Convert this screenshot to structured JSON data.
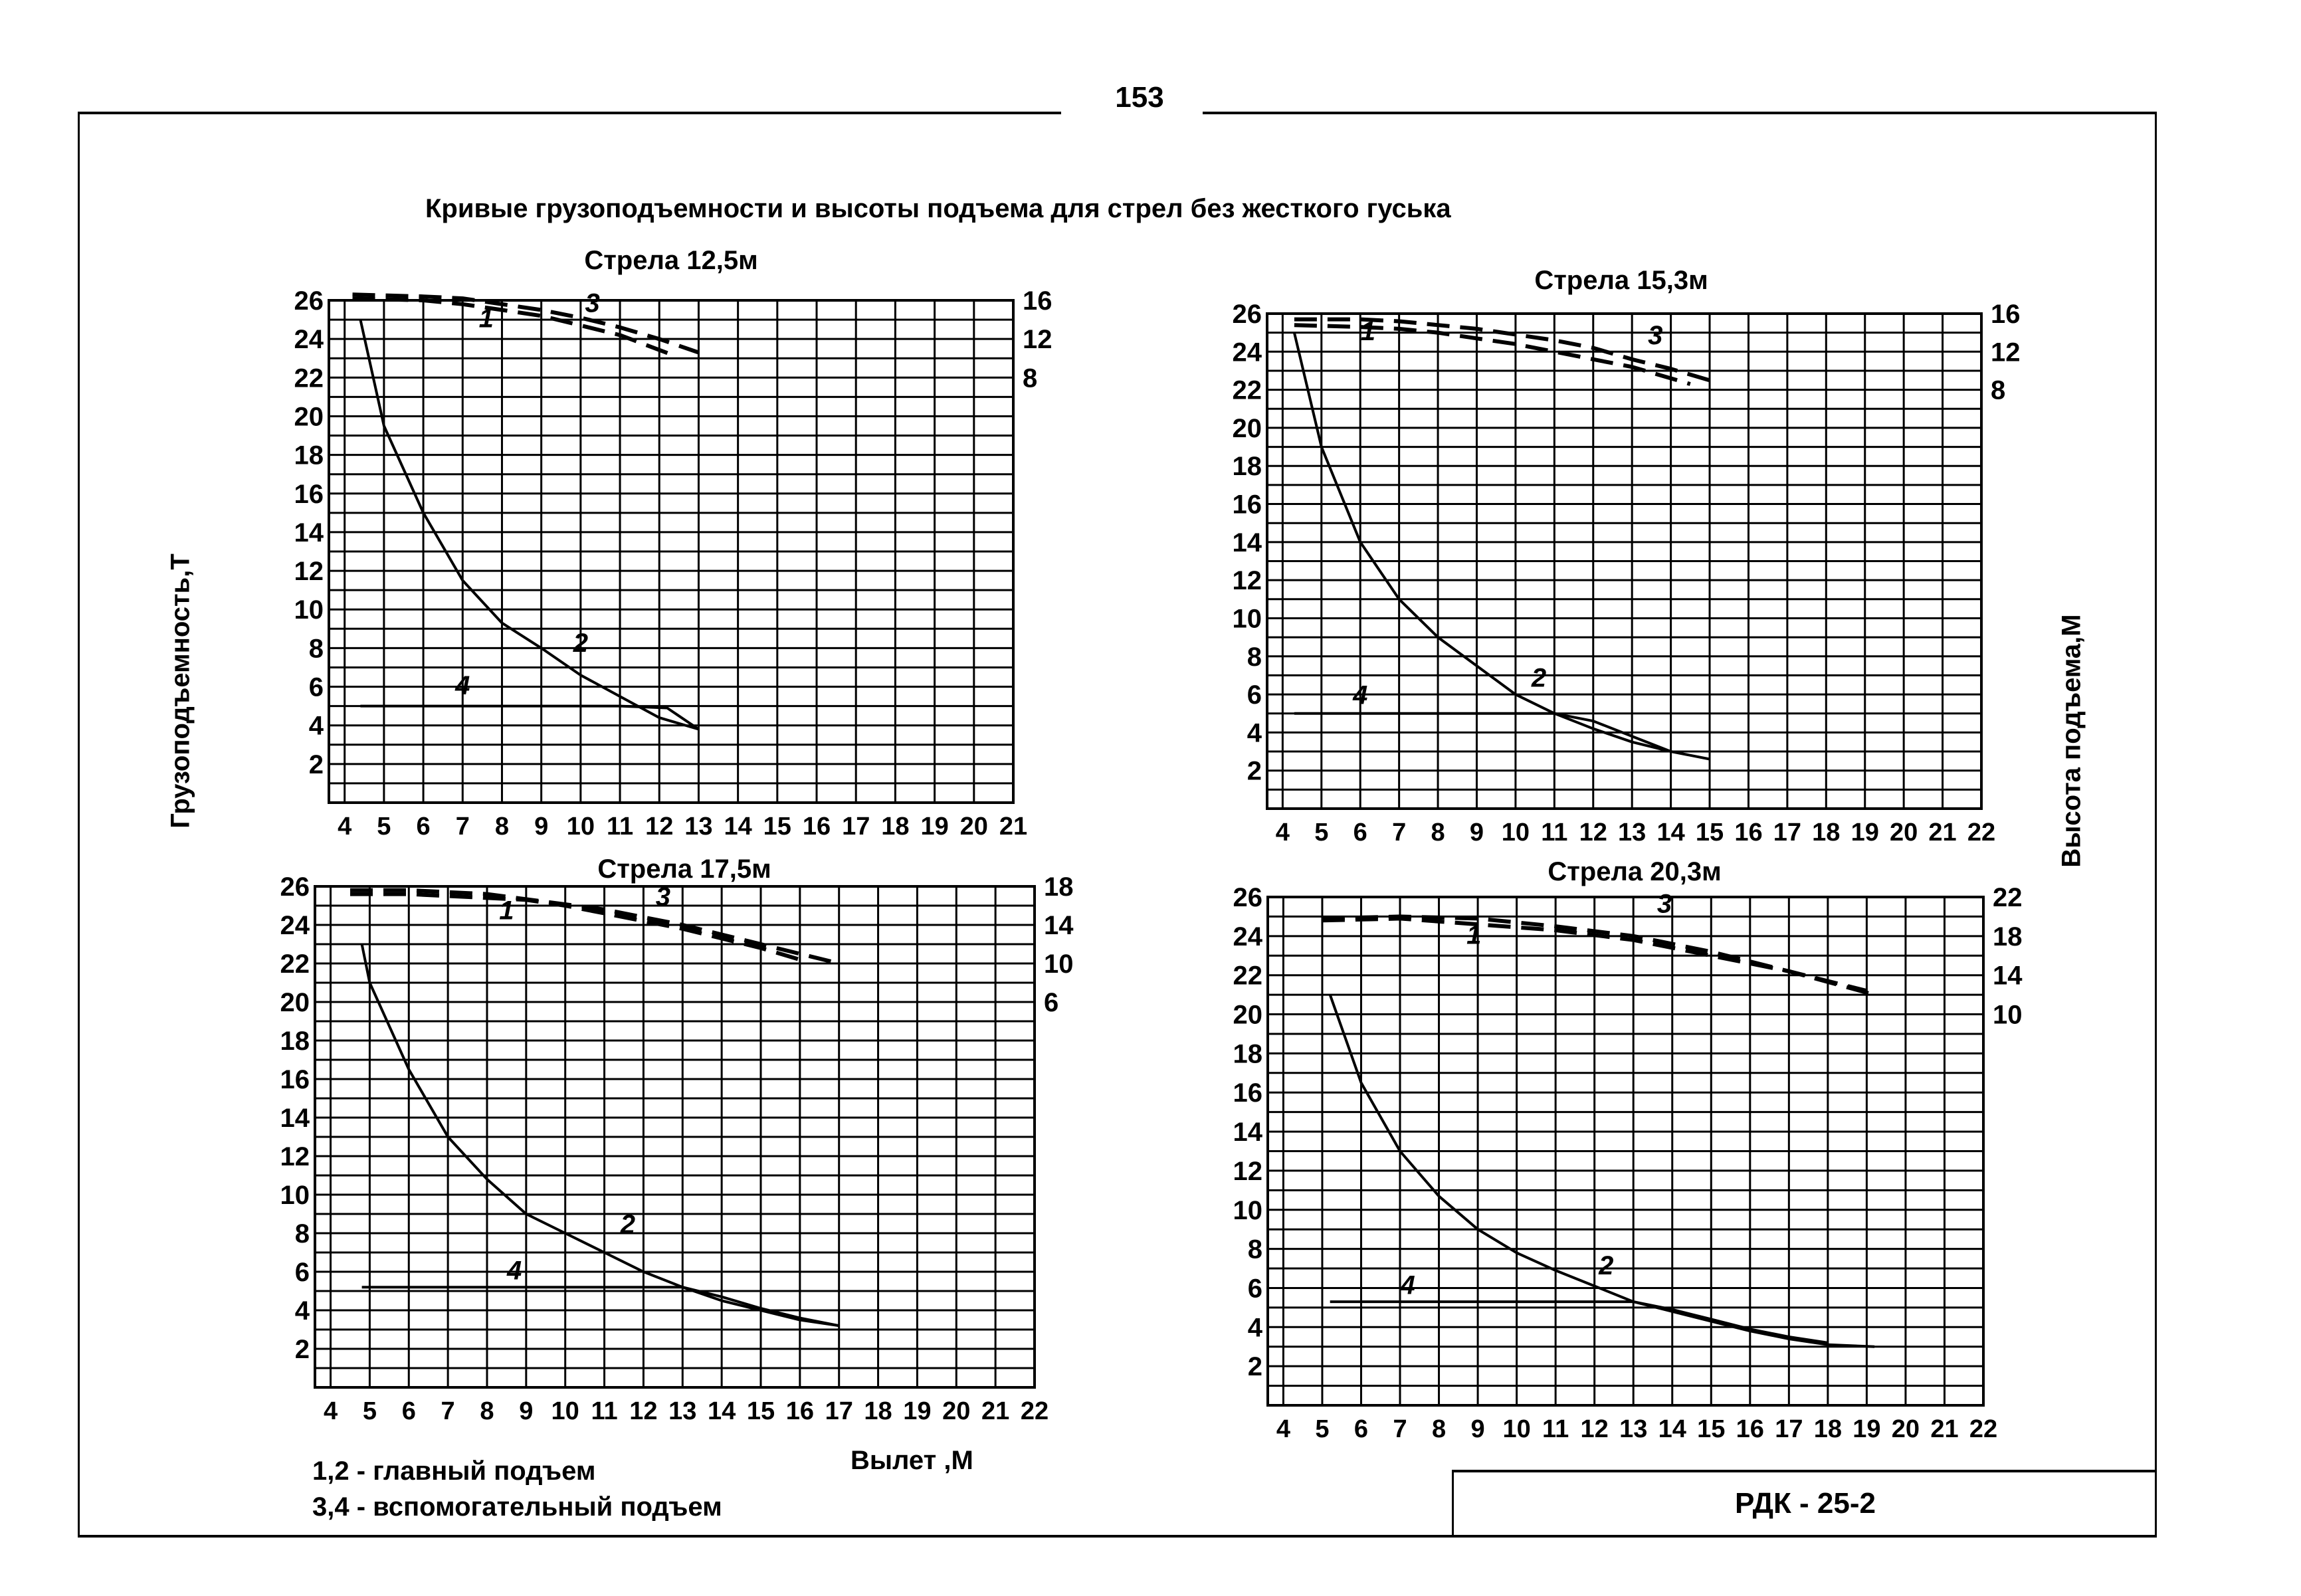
{
  "page": {
    "page_number": "153",
    "main_title": "Кривые грузоподъемности и высоты подъема для стрел без жесткого гуська",
    "y_axis_left_label": "Грузоподъемность,Т",
    "y_axis_right_label": "Высота подъема,М",
    "x_axis_label": "Вылет ,М",
    "legend": [
      "1,2 - главный подъем",
      "3,4 - вспомогательный подъем"
    ],
    "stamp": "РДК - 25-2"
  },
  "chart_data": [
    {
      "type": "line",
      "title": "Стрела 12,5м",
      "xlabel": "Вылет ,М",
      "ylabel": "Грузоподъемность,Т",
      "y2label": "Высота подъема,М",
      "xlim": [
        3.6,
        21
      ],
      "ylim": [
        0,
        26
      ],
      "grid": true,
      "x_ticks": [
        4,
        5,
        6,
        7,
        8,
        9,
        10,
        11,
        12,
        13,
        14,
        15,
        16,
        17,
        18,
        19,
        20,
        21
      ],
      "x_tick_labels": [
        "4",
        "5",
        "6",
        "7",
        "8",
        "9",
        "10",
        "11",
        "12",
        "13",
        "14",
        "15",
        "16",
        "17",
        "18",
        "19",
        "20",
        "21"
      ],
      "y_ticks": [
        2,
        4,
        6,
        8,
        10,
        12,
        14,
        16,
        18,
        20,
        22,
        24,
        26
      ],
      "y2_ticks": [
        {
          "label": "16",
          "at_left": 26
        },
        {
          "label": "12",
          "at_left": 24
        },
        {
          "label": "8",
          "at_left": 22
        }
      ],
      "series": [
        {
          "name": "1",
          "style": "dashed",
          "axis": "right",
          "points": [
            [
              4.2,
              26.1
            ],
            [
              6,
              26.0
            ],
            [
              7,
              25.8
            ],
            [
              8,
              25.5
            ],
            [
              9,
              25.2
            ],
            [
              10,
              24.7
            ],
            [
              11,
              24.2
            ],
            [
              12.3,
              23.2
            ]
          ]
        },
        {
          "name": "2",
          "style": "solid",
          "axis": "left",
          "points": [
            [
              4.4,
              25
            ],
            [
              5,
              19.5
            ],
            [
              6,
              15
            ],
            [
              7,
              11.5
            ],
            [
              8,
              9.3
            ],
            [
              9,
              8
            ],
            [
              10,
              6.6
            ],
            [
              11,
              5.5
            ],
            [
              12,
              4.4
            ],
            [
              13,
              3.8
            ]
          ]
        },
        {
          "name": "3",
          "style": "dashed",
          "axis": "right",
          "points": [
            [
              4.2,
              26.3
            ],
            [
              6,
              26.2
            ],
            [
              7,
              26.1
            ],
            [
              8,
              25.8
            ],
            [
              9,
              25.5
            ],
            [
              10,
              25.1
            ],
            [
              11,
              24.6
            ],
            [
              12,
              24.0
            ],
            [
              13,
              23.3
            ]
          ]
        },
        {
          "name": "4",
          "style": "solid",
          "axis": "left",
          "points": [
            [
              4.4,
              5
            ],
            [
              11,
              5
            ],
            [
              12.2,
              4.9
            ],
            [
              13,
              3.8
            ]
          ]
        }
      ],
      "annotations": [
        {
          "text": "1",
          "x": 7.6,
          "y": 24.6
        },
        {
          "text": "2",
          "x": 10,
          "y": 7.8
        },
        {
          "text": "3",
          "x": 10.3,
          "y": 25.4
        },
        {
          "text": "4",
          "x": 7.0,
          "y": 5.6
        }
      ]
    },
    {
      "type": "line",
      "title": "Стрела 15,3м",
      "xlabel": "Вылет ,М",
      "ylabel": "Грузоподъемность,Т",
      "y2label": "Высота подъема,М",
      "xlim": [
        3.6,
        22
      ],
      "ylim": [
        0,
        26
      ],
      "grid": true,
      "x_ticks": [
        4,
        5,
        6,
        7,
        8,
        9,
        10,
        11,
        12,
        13,
        14,
        15,
        16,
        17,
        18,
        19,
        20,
        21,
        22
      ],
      "x_tick_labels": [
        "4",
        "5",
        "6",
        "7",
        "8",
        "9",
        "10",
        "11",
        "12",
        "13",
        "14",
        "15",
        "16",
        "17",
        "18",
        "19",
        "20",
        "21",
        "22"
      ],
      "y_ticks": [
        2,
        4,
        6,
        8,
        10,
        12,
        14,
        16,
        18,
        20,
        22,
        24,
        26
      ],
      "y2_ticks": [
        {
          "label": "16",
          "at_left": 26
        },
        {
          "label": "12",
          "at_left": 24
        },
        {
          "label": "8",
          "at_left": 22
        }
      ],
      "series": [
        {
          "name": "1",
          "style": "dashed",
          "axis": "right",
          "points": [
            [
              4.3,
              25.4
            ],
            [
              6,
              25.3
            ],
            [
              7,
              25.2
            ],
            [
              8,
              25.0
            ],
            [
              9,
              24.7
            ],
            [
              10,
              24.4
            ],
            [
              11,
              24.0
            ],
            [
              12,
              23.6
            ],
            [
              13,
              23.2
            ],
            [
              14.5,
              22.3
            ]
          ]
        },
        {
          "name": "2",
          "style": "solid",
          "axis": "left",
          "points": [
            [
              4.3,
              25
            ],
            [
              5,
              19
            ],
            [
              6,
              14
            ],
            [
              7,
              11
            ],
            [
              8,
              9
            ],
            [
              9,
              7.5
            ],
            [
              10,
              6
            ],
            [
              11,
              5
            ],
            [
              12,
              4.2
            ],
            [
              13,
              3.5
            ],
            [
              14,
              3
            ],
            [
              15,
              2.6
            ]
          ]
        },
        {
          "name": "3",
          "style": "dashed",
          "axis": "right",
          "points": [
            [
              4.3,
              25.7
            ],
            [
              6,
              25.7
            ],
            [
              7,
              25.6
            ],
            [
              8,
              25.4
            ],
            [
              9,
              25.2
            ],
            [
              10,
              24.9
            ],
            [
              11,
              24.6
            ],
            [
              12,
              24.2
            ],
            [
              13,
              23.6
            ],
            [
              14,
              23.1
            ],
            [
              15,
              22.5
            ]
          ]
        },
        {
          "name": "4",
          "style": "solid",
          "axis": "left",
          "points": [
            [
              4.3,
              5
            ],
            [
              11,
              5
            ],
            [
              12,
              4.6
            ],
            [
              13,
              3.8
            ],
            [
              14,
              3.0
            ]
          ]
        }
      ],
      "annotations": [
        {
          "text": "1",
          "x": 6.2,
          "y": 24.6
        },
        {
          "text": "2",
          "x": 10.6,
          "y": 6.4
        },
        {
          "text": "3",
          "x": 13.6,
          "y": 24.4
        },
        {
          "text": "4",
          "x": 6.0,
          "y": 5.5
        }
      ]
    },
    {
      "type": "line",
      "title": "Стрела 17,5м",
      "xlabel": "Вылет ,М",
      "ylabel": "Грузоподъемность,Т",
      "y2label": "Высота подъема,М",
      "xlim": [
        3.6,
        22
      ],
      "ylim": [
        0,
        26
      ],
      "grid": true,
      "x_ticks": [
        4,
        5,
        6,
        7,
        8,
        9,
        10,
        11,
        12,
        13,
        14,
        15,
        16,
        17,
        18,
        19,
        20,
        21,
        22
      ],
      "x_tick_labels": [
        "4",
        "5",
        "6",
        "7",
        "8",
        "9",
        "10",
        "11",
        "12",
        "13",
        "14",
        "15",
        "16",
        "17",
        "18",
        "19",
        "20",
        "21",
        "22"
      ],
      "y_ticks": [
        2,
        4,
        6,
        8,
        10,
        12,
        14,
        16,
        18,
        20,
        22,
        24,
        26
      ],
      "y2_ticks": [
        {
          "label": "18",
          "at_left": 26
        },
        {
          "label": "14",
          "at_left": 24
        },
        {
          "label": "10",
          "at_left": 22
        },
        {
          "label": "6",
          "at_left": 20
        }
      ],
      "series": [
        {
          "name": "1",
          "style": "dashed",
          "axis": "right",
          "points": [
            [
              4.5,
              25.6
            ],
            [
              6,
              25.6
            ],
            [
              7,
              25.5
            ],
            [
              8,
              25.4
            ],
            [
              9,
              25.3
            ],
            [
              10,
              25.0
            ],
            [
              11,
              24.6
            ],
            [
              12,
              24.2
            ],
            [
              13,
              23.8
            ],
            [
              14,
              23.3
            ],
            [
              15,
              22.8
            ],
            [
              16,
              22.2
            ]
          ]
        },
        {
          "name": "2",
          "style": "solid",
          "axis": "left",
          "points": [
            [
              4.8,
              23
            ],
            [
              5,
              21
            ],
            [
              6,
              16.5
            ],
            [
              7,
              13
            ],
            [
              8,
              10.8
            ],
            [
              9,
              9
            ],
            [
              10,
              8
            ],
            [
              11,
              7
            ],
            [
              12,
              6
            ],
            [
              13,
              5.2
            ],
            [
              14,
              4.5
            ],
            [
              15,
              4
            ],
            [
              16,
              3.5
            ],
            [
              17,
              3.2
            ]
          ]
        },
        {
          "name": "3",
          "style": "dashed",
          "axis": "right",
          "points": [
            [
              4.5,
              25.8
            ],
            [
              6,
              25.8
            ],
            [
              7,
              25.7
            ],
            [
              8,
              25.6
            ],
            [
              9.5,
              25.2
            ],
            [
              11,
              24.8
            ],
            [
              12,
              24.4
            ],
            [
              13,
              24.0
            ],
            [
              14,
              23.5
            ],
            [
              15,
              23.0
            ],
            [
              16,
              22.5
            ],
            [
              17,
              22
            ]
          ]
        },
        {
          "name": "4",
          "style": "solid",
          "axis": "left",
          "points": [
            [
              4.8,
              5.2
            ],
            [
              13,
              5.2
            ],
            [
              14,
              4.7
            ],
            [
              15,
              4.1
            ],
            [
              16,
              3.6
            ],
            [
              17,
              3.2
            ]
          ]
        }
      ],
      "annotations": [
        {
          "text": "1",
          "x": 8.5,
          "y": 24.3
        },
        {
          "text": "2",
          "x": 11.6,
          "y": 8.0
        },
        {
          "text": "3",
          "x": 12.5,
          "y": 25.0
        },
        {
          "text": "4",
          "x": 8.7,
          "y": 5.6
        }
      ]
    },
    {
      "type": "line",
      "title": "Стрела 20,3м",
      "xlabel": "Вылет ,М",
      "ylabel": "Грузоподъемность,Т",
      "y2label": "Высота подъема,М",
      "xlim": [
        3.6,
        22
      ],
      "ylim": [
        0,
        26
      ],
      "grid": true,
      "x_ticks": [
        4,
        5,
        6,
        7,
        8,
        9,
        10,
        11,
        12,
        13,
        14,
        15,
        16,
        17,
        18,
        19,
        20,
        21,
        22
      ],
      "x_tick_labels": [
        "4",
        "5",
        "6",
        "7",
        "8",
        "9",
        "10",
        "11",
        "12",
        "13",
        "14",
        "15",
        "16",
        "17",
        "18",
        "19",
        "20",
        "21",
        "22"
      ],
      "y_ticks": [
        2,
        4,
        6,
        8,
        10,
        12,
        14,
        16,
        18,
        20,
        22,
        24,
        26
      ],
      "y2_ticks": [
        {
          "label": "22",
          "at_left": 26
        },
        {
          "label": "18",
          "at_left": 24
        },
        {
          "label": "14",
          "at_left": 22
        },
        {
          "label": "10",
          "at_left": 20
        }
      ],
      "series": [
        {
          "name": "1",
          "style": "dashed",
          "axis": "right",
          "points": [
            [
              5,
              24.8
            ],
            [
              7,
              24.9
            ],
            [
              9,
              24.6
            ],
            [
              11,
              24.3
            ],
            [
              13,
              23.8
            ],
            [
              15,
              23.0
            ],
            [
              17,
              22.2
            ],
            [
              19,
              21.2
            ]
          ]
        },
        {
          "name": "2",
          "style": "solid",
          "axis": "left",
          "points": [
            [
              5.2,
              21
            ],
            [
              6,
              16.5
            ],
            [
              7,
              13
            ],
            [
              8,
              10.7
            ],
            [
              9,
              9
            ],
            [
              10,
              7.8
            ],
            [
              11,
              6.9
            ],
            [
              12,
              6.1
            ],
            [
              13,
              5.3
            ],
            [
              14,
              4.8
            ],
            [
              15,
              4.3
            ],
            [
              16,
              3.8
            ],
            [
              17,
              3.4
            ],
            [
              18,
              3.1
            ],
            [
              19.2,
              3
            ]
          ]
        },
        {
          "name": "3",
          "style": "dashed",
          "axis": "right",
          "points": [
            [
              5,
              24.9
            ],
            [
              7,
              25.0
            ],
            [
              9,
              24.9
            ],
            [
              11,
              24.5
            ],
            [
              13,
              24.0
            ],
            [
              15,
              23.2
            ],
            [
              17,
              22.2
            ],
            [
              19.2,
              21
            ]
          ]
        },
        {
          "name": "4",
          "style": "solid",
          "axis": "left",
          "points": [
            [
              5.2,
              5.3
            ],
            [
              13,
              5.3
            ],
            [
              14,
              4.9
            ],
            [
              15,
              4.4
            ],
            [
              16,
              3.9
            ],
            [
              17,
              3.5
            ],
            [
              18,
              3.2
            ]
          ]
        }
      ],
      "annotations": [
        {
          "text": "1",
          "x": 8.9,
          "y": 23.6
        },
        {
          "text": "2",
          "x": 12.3,
          "y": 6.7
        },
        {
          "text": "3",
          "x": 13.8,
          "y": 25.2
        },
        {
          "text": "4",
          "x": 7.2,
          "y": 5.7
        }
      ]
    }
  ]
}
